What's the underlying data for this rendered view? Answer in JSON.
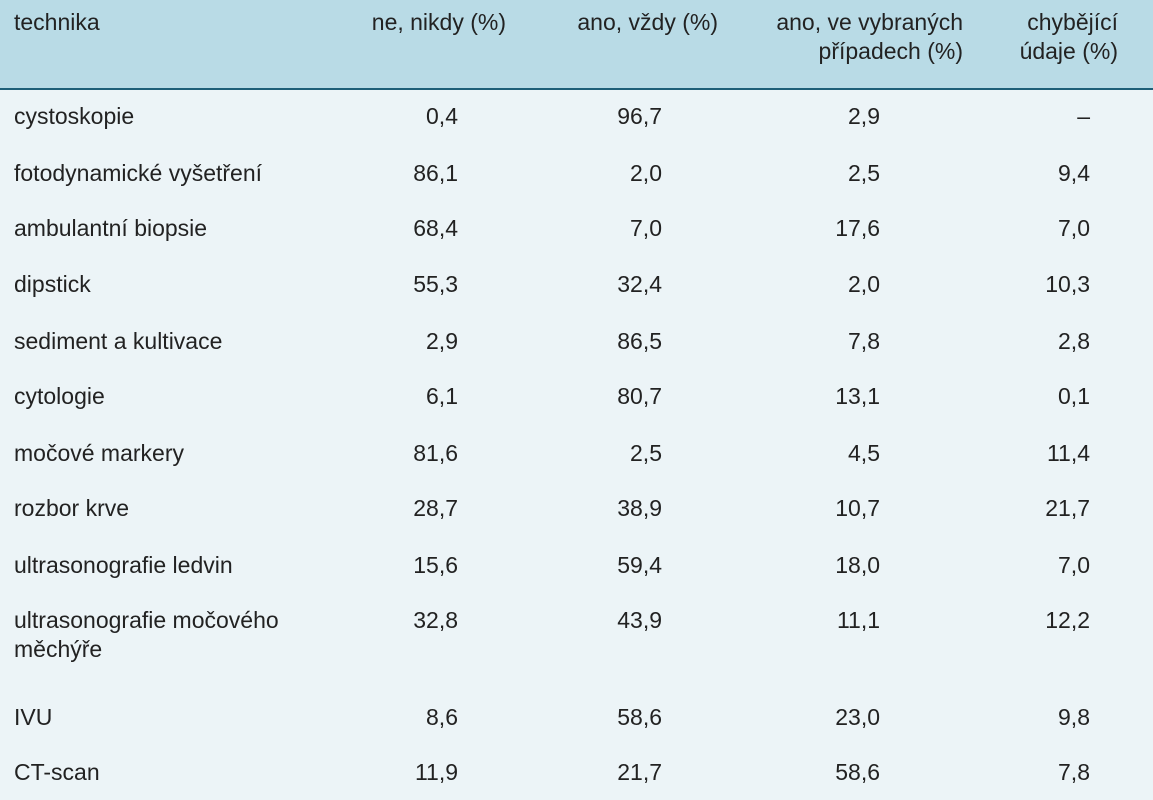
{
  "table": {
    "headers": {
      "technika": "technika",
      "never": "ne, nikdy (%)",
      "always": "ano, vždy (%)",
      "selected": "ano, ve vybraných případech (%)",
      "missing": "chybějící údaje (%)"
    },
    "rows": [
      {
        "technika": "cystoskopie",
        "never": "0,4",
        "always": "96,7",
        "selected": "2,9",
        "missing": "–"
      },
      {
        "technika": "fotodynamické vyšetření",
        "never": "86,1",
        "always": "2,0",
        "selected": "2,5",
        "missing": "9,4"
      },
      {
        "technika": "ambulantní biopsie",
        "never": "68,4",
        "always": "7,0",
        "selected": "17,6",
        "missing": "7,0"
      },
      {
        "technika": "dipstick",
        "never": "55,3",
        "always": "32,4",
        "selected": "2,0",
        "missing": "10,3"
      },
      {
        "technika": "sediment a kultivace",
        "never": "2,9",
        "always": "86,5",
        "selected": "7,8",
        "missing": "2,8"
      },
      {
        "technika": "cytologie",
        "never": "6,1",
        "always": "80,7",
        "selected": "13,1",
        "missing": "0,1"
      },
      {
        "technika": "močové markery",
        "never": "81,6",
        "always": "2,5",
        "selected": "4,5",
        "missing": "11,4"
      },
      {
        "technika": "rozbor krve",
        "never": "28,7",
        "always": "38,9",
        "selected": "10,7",
        "missing": "21,7"
      },
      {
        "technika": "ultrasonografie ledvin",
        "never": "15,6",
        "always": "59,4",
        "selected": "18,0",
        "missing": "7,0"
      },
      {
        "technika": "ultrasonografie močového měchýře",
        "never": "32,8",
        "always": "43,9",
        "selected": "11,1",
        "missing": "12,2"
      },
      {
        "technika": "IVU",
        "never": "8,6",
        "always": "58,6",
        "selected": "23,0",
        "missing": "9,8"
      },
      {
        "technika": "CT-scan",
        "never": "11,9",
        "always": "21,7",
        "selected": "58,6",
        "missing": "7,8"
      }
    ]
  },
  "colors": {
    "background": "#ecf4f7",
    "header_background": "#b9dbe6",
    "rule": "#1e5f78",
    "text": "#222222"
  }
}
